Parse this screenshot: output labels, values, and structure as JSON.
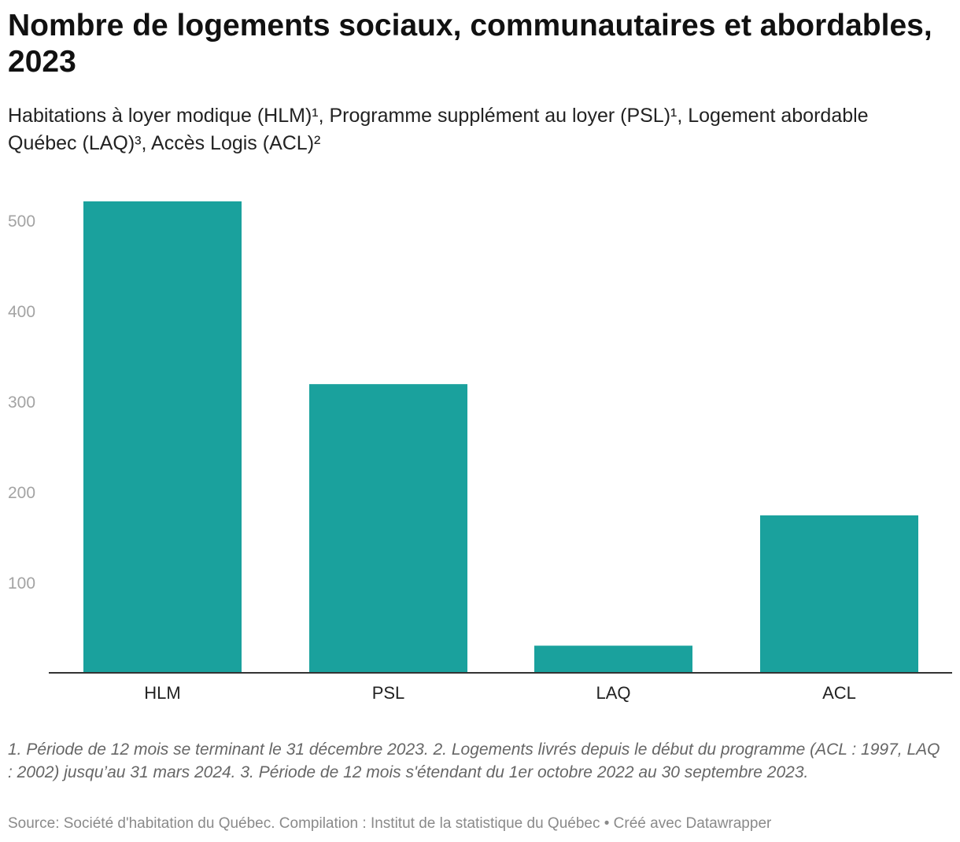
{
  "header": {
    "title": "Nombre de logements sociaux, communautaires et abordables, 2023",
    "subtitle": "Habitations à loyer modique (HLM)¹, Programme supplément au loyer (PSL)¹, Logement abordable Québec (LAQ)³, Accès Logis (ACL)²"
  },
  "chart_data": {
    "type": "bar",
    "title": "Nombre de logements sociaux, communautaires et abordables, 2023",
    "subtitle": "Habitations à loyer modique (HLM)¹, Programme supplément au loyer (PSL)¹, Logement abordable Québec (LAQ)³, Accès Logis (ACL)²",
    "xlabel": "",
    "ylabel": "",
    "categories": [
      "HLM",
      "PSL",
      "LAQ",
      "ACL"
    ],
    "values": [
      521,
      319,
      30,
      174
    ],
    "ylim": [
      0,
      560
    ],
    "yticks": [
      100,
      200,
      300,
      400,
      500
    ],
    "grid": false,
    "bar_color": "#1aa19d",
    "axis_color": "#333333"
  },
  "footer": {
    "notes": "1. Période de 12 mois se terminant le 31 décembre 2023. 2. Logements livrés depuis le début du programme (ACL : 1997, LAQ : 2002) jusqu’au 31 mars 2024. 3. Période de 12 mois s'étendant du 1er octobre 2022 au 30 septembre 2023.",
    "source": "Source: Société d'habitation du Québec. Compilation : Institut de la statistique du Québec • Créé avec Datawrapper"
  }
}
